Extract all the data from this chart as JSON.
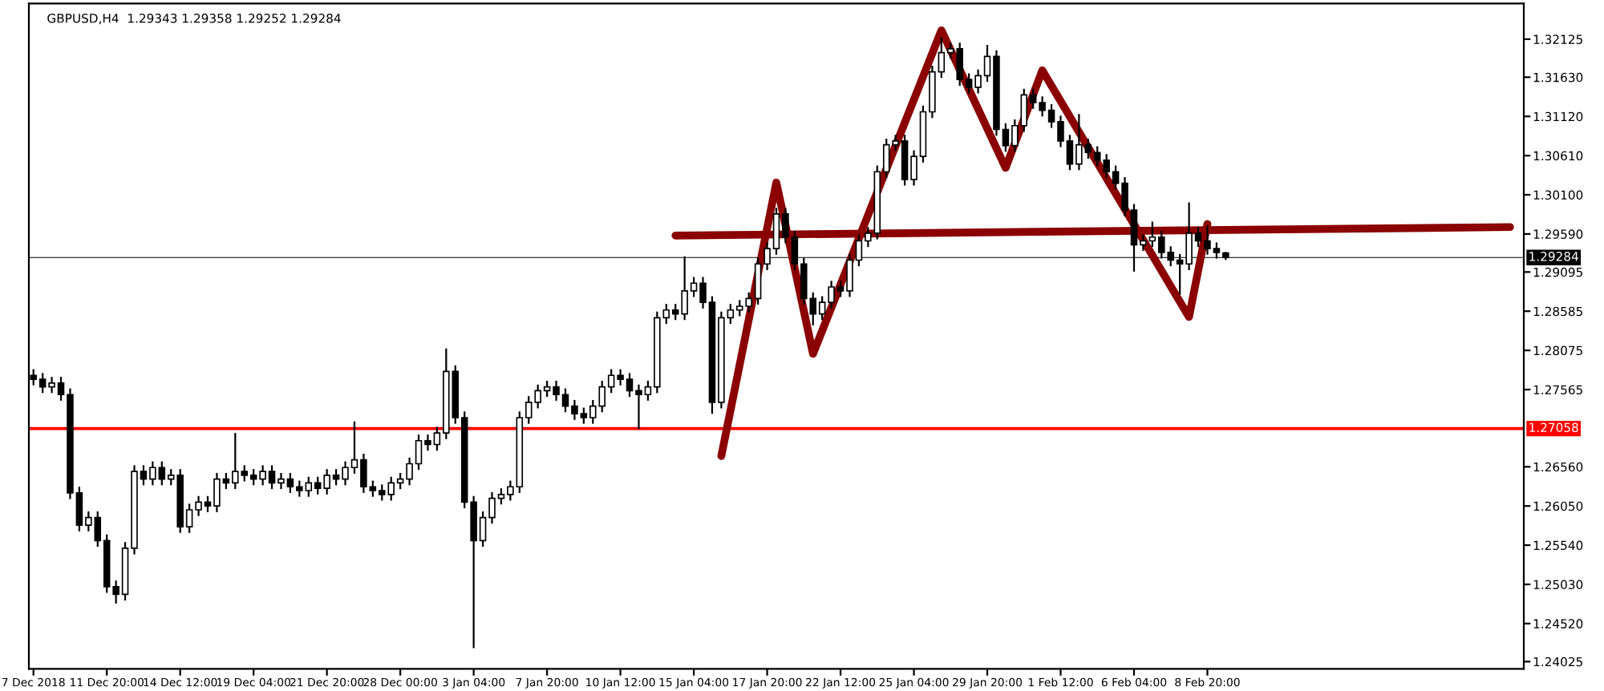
{
  "chart_data": {
    "type": "candlestick",
    "title": "GBPUSD,H4  1.29343 1.29358 1.29252 1.29284",
    "categories": [
      "7 Dec 2018",
      null,
      null,
      null,
      null,
      null,
      null,
      null,
      "11 Dec 20:00",
      null,
      null,
      null,
      null,
      null,
      null,
      null,
      "14 Dec 12:00",
      null,
      null,
      null,
      null,
      null,
      null,
      null,
      "19 Dec 04:00",
      null,
      null,
      null,
      null,
      null,
      null,
      null,
      "21 Dec 20:00",
      null,
      null,
      null,
      null,
      null,
      null,
      null,
      "28 Dec 00:00",
      null,
      null,
      null,
      null,
      null,
      null,
      null,
      "3 Jan 04:00",
      null,
      null,
      null,
      null,
      null,
      null,
      null,
      "7 Jan 20:00",
      null,
      null,
      null,
      null,
      null,
      null,
      null,
      "10 Jan 12:00",
      null,
      null,
      null,
      null,
      null,
      null,
      null,
      "15 Jan 04:00",
      null,
      null,
      null,
      null,
      null,
      null,
      null,
      "17 Jan 20:00",
      null,
      null,
      null,
      null,
      null,
      null,
      null,
      "22 Jan 12:00",
      null,
      null,
      null,
      null,
      null,
      null,
      null,
      "25 Jan 04:00",
      null,
      null,
      null,
      null,
      null,
      null,
      null,
      "29 Jan 20:00",
      null,
      null,
      null,
      null,
      null,
      null,
      null,
      "1 Feb 12:00",
      null,
      null,
      null,
      null,
      null,
      null,
      null,
      "6 Feb 04:00",
      null,
      null,
      null,
      null,
      null,
      null,
      null,
      "8 Feb 20:00",
      null,
      null,
      null,
      null,
      null,
      null,
      null,
      null,
      null,
      null,
      null,
      null,
      null,
      null,
      null,
      null,
      null,
      null,
      null,
      null,
      null,
      null,
      null,
      null,
      null,
      null,
      null,
      null,
      null,
      null,
      null,
      null,
      null,
      null
    ],
    "color": "#000000",
    "ohlc": [
      [
        1.2775,
        1.2783,
        1.2762,
        1.277
      ],
      [
        1.277,
        1.2778,
        1.2752,
        1.276
      ],
      [
        1.276,
        1.2773,
        1.2752,
        1.2765
      ],
      [
        1.2765,
        1.2773,
        1.2742,
        1.275
      ],
      [
        1.275,
        1.2758,
        1.2614,
        1.2622
      ],
      [
        1.2622,
        1.263,
        1.2572,
        1.258
      ],
      [
        1.258,
        1.2598,
        1.2572,
        1.259
      ],
      [
        1.259,
        1.2598,
        1.2552,
        1.256
      ],
      [
        1.256,
        1.2568,
        1.2492,
        1.25
      ],
      [
        1.25,
        1.2508,
        1.2478,
        1.249
      ],
      [
        1.249,
        1.2558,
        1.2482,
        1.255
      ],
      [
        1.255,
        1.2658,
        1.2542,
        1.265
      ],
      [
        1.265,
        1.2658,
        1.2632,
        1.264
      ],
      [
        1.264,
        1.2663,
        1.2632,
        1.2655
      ],
      [
        1.2655,
        1.2663,
        1.2632,
        1.264
      ],
      [
        1.264,
        1.2653,
        1.2632,
        1.2645
      ],
      [
        1.2645,
        1.2653,
        1.257,
        1.2578
      ],
      [
        1.2578,
        1.2608,
        1.257,
        1.26
      ],
      [
        1.26,
        1.2618,
        1.2592,
        1.261
      ],
      [
        1.261,
        1.2618,
        1.2597,
        1.2605
      ],
      [
        1.2605,
        1.2648,
        1.2597,
        1.264
      ],
      [
        1.264,
        1.2648,
        1.2627,
        1.2635
      ],
      [
        1.2635,
        1.27,
        1.2627,
        1.265
      ],
      [
        1.265,
        1.2658,
        1.2637,
        1.2645
      ],
      [
        1.2645,
        1.2653,
        1.2632,
        1.264
      ],
      [
        1.264,
        1.2658,
        1.2632,
        1.265
      ],
      [
        1.265,
        1.2658,
        1.2627,
        1.2635
      ],
      [
        1.2635,
        1.2648,
        1.2627,
        1.264
      ],
      [
        1.264,
        1.2648,
        1.2622,
        1.263
      ],
      [
        1.263,
        1.2638,
        1.2617,
        1.2625
      ],
      [
        1.2625,
        1.2643,
        1.2617,
        1.2635
      ],
      [
        1.2635,
        1.2643,
        1.262,
        1.2628
      ],
      [
        1.2628,
        1.2653,
        1.262,
        1.2645
      ],
      [
        1.2645,
        1.2653,
        1.2632,
        1.264
      ],
      [
        1.264,
        1.2663,
        1.2632,
        1.2655
      ],
      [
        1.2655,
        1.2715,
        1.2647,
        1.2665
      ],
      [
        1.2665,
        1.2673,
        1.2622,
        1.263
      ],
      [
        1.263,
        1.2638,
        1.2617,
        1.2625
      ],
      [
        1.2625,
        1.2633,
        1.2612,
        1.262
      ],
      [
        1.262,
        1.2643,
        1.2612,
        1.2635
      ],
      [
        1.2635,
        1.2648,
        1.2627,
        1.264
      ],
      [
        1.264,
        1.2668,
        1.2632,
        1.266
      ],
      [
        1.266,
        1.2698,
        1.2652,
        1.269
      ],
      [
        1.269,
        1.2698,
        1.2677,
        1.2685
      ],
      [
        1.2685,
        1.2708,
        1.2677,
        1.27
      ],
      [
        1.27,
        1.281,
        1.2692,
        1.278
      ],
      [
        1.278,
        1.2788,
        1.2712,
        1.272
      ],
      [
        1.272,
        1.2728,
        1.2602,
        1.261
      ],
      [
        1.261,
        1.2618,
        1.242,
        1.256
      ],
      [
        1.256,
        1.2598,
        1.2552,
        1.259
      ],
      [
        1.259,
        1.2623,
        1.2582,
        1.2615
      ],
      [
        1.2615,
        1.2628,
        1.2607,
        1.262
      ],
      [
        1.262,
        1.2638,
        1.2612,
        1.263
      ],
      [
        1.263,
        1.2728,
        1.2622,
        1.272
      ],
      [
        1.272,
        1.2748,
        1.2712,
        1.274
      ],
      [
        1.274,
        1.2763,
        1.2732,
        1.2755
      ],
      [
        1.2755,
        1.2768,
        1.2747,
        1.276
      ],
      [
        1.276,
        1.2768,
        1.2742,
        1.275
      ],
      [
        1.275,
        1.2758,
        1.2727,
        1.2735
      ],
      [
        1.2735,
        1.2743,
        1.2717,
        1.2725
      ],
      [
        1.2725,
        1.2733,
        1.2712,
        1.272
      ],
      [
        1.272,
        1.2743,
        1.2712,
        1.2735
      ],
      [
        1.2735,
        1.2768,
        1.2727,
        1.276
      ],
      [
        1.276,
        1.2783,
        1.2752,
        1.2775
      ],
      [
        1.2775,
        1.2783,
        1.2762,
        1.277
      ],
      [
        1.277,
        1.2778,
        1.2747,
        1.2755
      ],
      [
        1.2755,
        1.2763,
        1.2705,
        1.275
      ],
      [
        1.275,
        1.2768,
        1.2742,
        1.276
      ],
      [
        1.276,
        1.2858,
        1.2752,
        1.285
      ],
      [
        1.285,
        1.2868,
        1.2842,
        1.286
      ],
      [
        1.286,
        1.2868,
        1.2847,
        1.2855
      ],
      [
        1.2855,
        1.293,
        1.2847,
        1.2885
      ],
      [
        1.2885,
        1.2903,
        1.2877,
        1.2895
      ],
      [
        1.2895,
        1.2903,
        1.2862,
        1.287
      ],
      [
        1.287,
        1.2878,
        1.2725,
        1.274
      ],
      [
        1.274,
        1.2858,
        1.2732,
        1.285
      ],
      [
        1.285,
        1.2868,
        1.2842,
        1.286
      ],
      [
        1.286,
        1.2873,
        1.2852,
        1.2865
      ],
      [
        1.2865,
        1.2883,
        1.2857,
        1.2875
      ],
      [
        1.2875,
        1.2928,
        1.2867,
        1.292
      ],
      [
        1.292,
        1.2948,
        1.2912,
        1.294
      ],
      [
        1.294,
        1.2993,
        1.2932,
        1.2985
      ],
      [
        1.2985,
        1.2993,
        1.2947,
        1.2955
      ],
      [
        1.2955,
        1.2963,
        1.2912,
        1.292
      ],
      [
        1.292,
        1.2928,
        1.2867,
        1.2875
      ],
      [
        1.2875,
        1.2883,
        1.284,
        1.2855
      ],
      [
        1.2855,
        1.2878,
        1.2847,
        1.287
      ],
      [
        1.287,
        1.2898,
        1.2862,
        1.289
      ],
      [
        1.289,
        1.2898,
        1.2877,
        1.2885
      ],
      [
        1.2885,
        1.2933,
        1.2877,
        1.2925
      ],
      [
        1.2925,
        1.2958,
        1.2917,
        1.295
      ],
      [
        1.295,
        1.2968,
        1.2942,
        1.296
      ],
      [
        1.296,
        1.3048,
        1.2952,
        1.304
      ],
      [
        1.304,
        1.3083,
        1.3032,
        1.3075
      ],
      [
        1.3075,
        1.3088,
        1.3067,
        1.308
      ],
      [
        1.308,
        1.3088,
        1.3022,
        1.303
      ],
      [
        1.303,
        1.3068,
        1.3022,
        1.306
      ],
      [
        1.306,
        1.3126,
        1.3052,
        1.3118
      ],
      [
        1.3118,
        1.3178,
        1.311,
        1.317
      ],
      [
        1.317,
        1.3215,
        1.3162,
        1.3195
      ],
      [
        1.3195,
        1.3208,
        1.3187,
        1.32
      ],
      [
        1.32,
        1.3208,
        1.3152,
        1.316
      ],
      [
        1.316,
        1.3168,
        1.3142,
        1.315
      ],
      [
        1.315,
        1.3173,
        1.3142,
        1.3165
      ],
      [
        1.3165,
        1.3205,
        1.3157,
        1.319
      ],
      [
        1.319,
        1.3198,
        1.3087,
        1.3095
      ],
      [
        1.3095,
        1.3103,
        1.3066,
        1.3074
      ],
      [
        1.3074,
        1.3108,
        1.3066,
        1.31
      ],
      [
        1.31,
        1.3148,
        1.3092,
        1.314
      ],
      [
        1.314,
        1.3148,
        1.3122,
        1.313
      ],
      [
        1.313,
        1.3138,
        1.3112,
        1.312
      ],
      [
        1.312,
        1.3128,
        1.3097,
        1.3105
      ],
      [
        1.3105,
        1.3113,
        1.3072,
        1.308
      ],
      [
        1.308,
        1.3088,
        1.3042,
        1.305
      ],
      [
        1.305,
        1.3115,
        1.3042,
        1.3075
      ],
      [
        1.3075,
        1.3083,
        1.3057,
        1.3065
      ],
      [
        1.3065,
        1.3073,
        1.3047,
        1.3055
      ],
      [
        1.3055,
        1.3063,
        1.3032,
        1.304
      ],
      [
        1.304,
        1.3048,
        1.3017,
        1.3025
      ],
      [
        1.3025,
        1.3033,
        1.2982,
        1.299
      ],
      [
        1.299,
        1.2998,
        1.291,
        1.2945
      ],
      [
        1.2945,
        1.2958,
        1.2937,
        1.295
      ],
      [
        1.295,
        1.2975,
        1.2942,
        1.2955
      ],
      [
        1.2955,
        1.2963,
        1.2927,
        1.2935
      ],
      [
        1.2935,
        1.2943,
        1.2917,
        1.2925
      ],
      [
        1.2925,
        1.2933,
        1.288,
        1.292
      ],
      [
        1.292,
        1.3,
        1.2912,
        1.296
      ],
      [
        1.296,
        1.2968,
        1.2942,
        1.295
      ],
      [
        1.295,
        1.297,
        1.2932,
        1.294
      ],
      [
        1.294,
        1.2948,
        1.2927,
        1.2935
      ],
      [
        1.29343,
        1.29358,
        1.29252,
        1.29284
      ],
      null,
      null,
      null,
      null,
      null,
      null,
      null,
      null,
      null,
      null,
      null,
      null,
      null,
      null,
      null,
      null,
      null,
      null,
      null,
      null,
      null,
      null,
      null,
      null,
      null,
      null,
      null,
      null,
      null,
      null,
      null,
      null
    ],
    "series": [
      {
        "type": "line",
        "color": "#8b0000",
        "values": [
          null,
          null,
          null,
          null,
          null,
          null,
          null,
          null,
          null,
          null,
          null,
          null,
          null,
          null,
          null,
          null,
          null,
          null,
          null,
          null,
          null,
          null,
          null,
          null,
          null,
          null,
          null,
          null,
          null,
          null,
          null,
          null,
          null,
          null,
          null,
          null,
          null,
          null,
          null,
          null,
          null,
          null,
          null,
          null,
          null,
          null,
          null,
          null,
          null,
          null,
          null,
          null,
          null,
          null,
          null,
          null,
          null,
          null,
          null,
          null,
          null,
          null,
          null,
          null,
          null,
          null,
          null,
          null,
          null,
          null,
          null,
          null,
          null,
          null,
          null,
          1.267,
          null,
          null,
          null,
          null,
          null,
          1.3026,
          null,
          null,
          null,
          1.2803,
          null,
          null,
          null,
          null,
          null,
          null,
          null,
          null,
          null,
          null,
          null,
          null,
          null,
          1.3224,
          null,
          null,
          null,
          null,
          null,
          null,
          1.3045,
          null,
          null,
          null,
          1.3172,
          null,
          null,
          null,
          null,
          null,
          null,
          null,
          null,
          null,
          null,
          null,
          null,
          null,
          null,
          null,
          1.2851,
          null,
          1.2972,
          null,
          null,
          null,
          null,
          null,
          null,
          null,
          null,
          null,
          null,
          null,
          null,
          null,
          null,
          null,
          null,
          null,
          null,
          null,
          null,
          null,
          null,
          null,
          null,
          null,
          null,
          null,
          null,
          null,
          null,
          null,
          null,
          null,
          null
        ]
      },
      {
        "type": "line",
        "color": "#8b0000",
        "values": [
          null,
          null,
          null,
          null,
          null,
          null,
          null,
          null,
          null,
          null,
          null,
          null,
          null,
          null,
          null,
          null,
          null,
          null,
          null,
          null,
          null,
          null,
          null,
          null,
          null,
          null,
          null,
          null,
          null,
          null,
          null,
          null,
          null,
          null,
          null,
          null,
          null,
          null,
          null,
          null,
          null,
          null,
          null,
          null,
          null,
          null,
          null,
          null,
          null,
          null,
          null,
          null,
          null,
          null,
          null,
          null,
          null,
          null,
          null,
          null,
          null,
          null,
          null,
          null,
          null,
          null,
          null,
          null,
          null,
          null,
          1.2957,
          null,
          null,
          null,
          null,
          null,
          null,
          null,
          null,
          null,
          null,
          null,
          null,
          null,
          null,
          null,
          null,
          null,
          null,
          null,
          null,
          null,
          null,
          null,
          null,
          null,
          null,
          null,
          null,
          null,
          null,
          null,
          null,
          null,
          null,
          null,
          null,
          null,
          null,
          null,
          null,
          null,
          null,
          null,
          null,
          null,
          null,
          null,
          null,
          null,
          null,
          null,
          null,
          null,
          null,
          null,
          null,
          null,
          null,
          null,
          null,
          null,
          null,
          null,
          null,
          null,
          null,
          null,
          null,
          null,
          null,
          null,
          null,
          null,
          null,
          null,
          null,
          null,
          null,
          null,
          null,
          null,
          null,
          null,
          null,
          null,
          null,
          null,
          null,
          null,
          null,
          1.2968,
          null
        ]
      }
    ],
    "ylim": [
      1.2393,
      1.3259
    ],
    "yticks": [
      {
        "value": 1.24025,
        "label": "1.24025"
      },
      {
        "value": 1.2452,
        "label": "1.24520"
      },
      {
        "value": 1.2503,
        "label": "1.25030"
      },
      {
        "value": 1.2554,
        "label": "1.25540"
      },
      {
        "value": 1.2605,
        "label": "1.26050"
      },
      {
        "value": 1.2656,
        "label": "1.26560"
      },
      {
        "value": 1.27565,
        "label": "1.27565"
      },
      {
        "value": 1.28075,
        "label": "1.28075"
      },
      {
        "value": 1.28585,
        "label": "1.28585"
      },
      {
        "value": 1.29095,
        "label": "1.29095"
      },
      {
        "value": 1.2959,
        "label": "1.29590"
      },
      {
        "value": 1.301,
        "label": "1.30100"
      },
      {
        "value": 1.3061,
        "label": "1.30610"
      },
      {
        "value": 1.3112,
        "label": "1.31120"
      },
      {
        "value": 1.3163,
        "label": "1.31630"
      },
      {
        "value": 1.32125,
        "label": "1.32125"
      }
    ],
    "ref_lines": [
      {
        "axis": "y",
        "value": 1.27058,
        "label": "1.27058",
        "color": "#ff0000"
      },
      {
        "axis": "y",
        "value": 1.29284,
        "label": "1.29284",
        "color": "#000000",
        "line_style": "solid"
      }
    ],
    "grid": false,
    "legend": false
  }
}
